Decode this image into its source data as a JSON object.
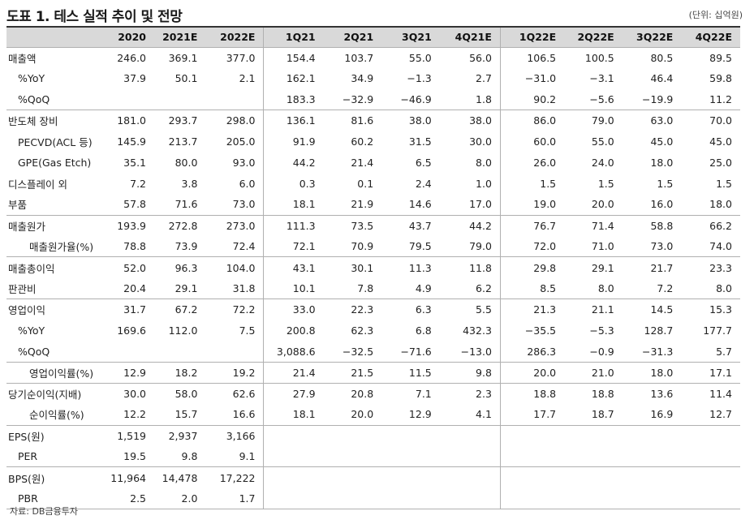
{
  "title": "도표 1. 테스 실적 추이 및 전망",
  "unit": "(단위: 십억원)",
  "footnote": "자료: DB금융투자",
  "columns": [
    "",
    "2020",
    "2021E",
    "2022E",
    "1Q21",
    "2Q21",
    "3Q21",
    "4Q21E",
    "1Q22E",
    "2Q22E",
    "3Q22E",
    "4Q22E"
  ],
  "rows": [
    {
      "label": "매출액",
      "indent": 0,
      "group_start": true,
      "values": [
        "246.0",
        "369.1",
        "377.0",
        "154.4",
        "103.7",
        "55.0",
        "56.0",
        "106.5",
        "100.5",
        "80.5",
        "89.5"
      ]
    },
    {
      "label": "%YoY",
      "indent": 1,
      "group_start": false,
      "values": [
        "37.9",
        "50.1",
        "2.1",
        "162.1",
        "34.9",
        "−1.3",
        "2.7",
        "−31.0",
        "−3.1",
        "46.4",
        "59.8"
      ]
    },
    {
      "label": "%QoQ",
      "indent": 1,
      "group_start": false,
      "values": [
        "",
        "",
        "",
        "183.3",
        "−32.9",
        "−46.9",
        "1.8",
        "90.2",
        "−5.6",
        "−19.9",
        "11.2"
      ]
    },
    {
      "label": "반도체 장비",
      "indent": 0,
      "group_start": true,
      "values": [
        "181.0",
        "293.7",
        "298.0",
        "136.1",
        "81.6",
        "38.0",
        "38.0",
        "86.0",
        "79.0",
        "63.0",
        "70.0"
      ]
    },
    {
      "label": "PECVD(ACL 등)",
      "indent": 1,
      "group_start": false,
      "values": [
        "145.9",
        "213.7",
        "205.0",
        "91.9",
        "60.2",
        "31.5",
        "30.0",
        "60.0",
        "55.0",
        "45.0",
        "45.0"
      ]
    },
    {
      "label": "GPE(Gas Etch)",
      "indent": 1,
      "group_start": false,
      "values": [
        "35.1",
        "80.0",
        "93.0",
        "44.2",
        "21.4",
        "6.5",
        "8.0",
        "26.0",
        "24.0",
        "18.0",
        "25.0"
      ]
    },
    {
      "label": "디스플레이 외",
      "indent": 0,
      "group_start": false,
      "values": [
        "7.2",
        "3.8",
        "6.0",
        "0.3",
        "0.1",
        "2.4",
        "1.0",
        "1.5",
        "1.5",
        "1.5",
        "1.5"
      ]
    },
    {
      "label": "부품",
      "indent": 0,
      "group_start": false,
      "values": [
        "57.8",
        "71.6",
        "73.0",
        "18.1",
        "21.9",
        "14.6",
        "17.0",
        "19.0",
        "20.0",
        "16.0",
        "18.0"
      ]
    },
    {
      "label": "매출원가",
      "indent": 0,
      "group_start": true,
      "values": [
        "193.9",
        "272.8",
        "273.0",
        "111.3",
        "73.5",
        "43.7",
        "44.2",
        "76.7",
        "71.4",
        "58.8",
        "66.2"
      ]
    },
    {
      "label": "매출원가율(%)",
      "indent": 2,
      "group_start": false,
      "values": [
        "78.8",
        "73.9",
        "72.4",
        "72.1",
        "70.9",
        "79.5",
        "79.0",
        "72.0",
        "71.0",
        "73.0",
        "74.0"
      ]
    },
    {
      "label": "매출총이익",
      "indent": 0,
      "group_start": true,
      "values": [
        "52.0",
        "96.3",
        "104.0",
        "43.1",
        "30.1",
        "11.3",
        "11.8",
        "29.8",
        "29.1",
        "21.7",
        "23.3"
      ]
    },
    {
      "label": "판관비",
      "indent": 0,
      "group_start": false,
      "values": [
        "20.4",
        "29.1",
        "31.8",
        "10.1",
        "7.8",
        "4.9",
        "6.2",
        "8.5",
        "8.0",
        "7.2",
        "8.0"
      ]
    },
    {
      "label": "영업이익",
      "indent": 0,
      "group_start": true,
      "values": [
        "31.7",
        "67.2",
        "72.2",
        "33.0",
        "22.3",
        "6.3",
        "5.5",
        "21.3",
        "21.1",
        "14.5",
        "15.3"
      ]
    },
    {
      "label": "%YoY",
      "indent": 1,
      "group_start": false,
      "values": [
        "169.6",
        "112.0",
        "7.5",
        "200.8",
        "62.3",
        "6.8",
        "432.3",
        "−35.5",
        "−5.3",
        "128.7",
        "177.7"
      ]
    },
    {
      "label": "%QoQ",
      "indent": 1,
      "group_start": false,
      "values": [
        "",
        "",
        "",
        "3,088.6",
        "−32.5",
        "−71.6",
        "−13.0",
        "286.3",
        "−0.9",
        "−31.3",
        "5.7"
      ]
    },
    {
      "label": "영업이익률(%)",
      "indent": 2,
      "group_start": true,
      "values": [
        "12.9",
        "18.2",
        "19.2",
        "21.4",
        "21.5",
        "11.5",
        "9.8",
        "20.0",
        "21.0",
        "18.0",
        "17.1"
      ]
    },
    {
      "label": "당기순이익(지배)",
      "indent": 0,
      "group_start": true,
      "values": [
        "30.0",
        "58.0",
        "62.6",
        "27.9",
        "20.8",
        "7.1",
        "2.3",
        "18.8",
        "18.8",
        "13.6",
        "11.4"
      ]
    },
    {
      "label": "순이익률(%)",
      "indent": 2,
      "group_start": false,
      "values": [
        "12.2",
        "15.7",
        "16.6",
        "18.1",
        "20.0",
        "12.9",
        "4.1",
        "17.7",
        "18.7",
        "16.9",
        "12.7"
      ]
    },
    {
      "label": "EPS(원)",
      "indent": 0,
      "group_start": true,
      "values": [
        "1,519",
        "2,937",
        "3,166",
        "",
        "",
        "",
        "",
        "",
        "",
        "",
        ""
      ]
    },
    {
      "label": "PER",
      "indent": 1,
      "group_start": false,
      "values": [
        "19.5",
        "9.8",
        "9.1",
        "",
        "",
        "",
        "",
        "",
        "",
        "",
        ""
      ]
    },
    {
      "label": "BPS(원)",
      "indent": 0,
      "group_start": true,
      "values": [
        "11,964",
        "14,478",
        "17,222",
        "",
        "",
        "",
        "",
        "",
        "",
        "",
        ""
      ]
    },
    {
      "label": "PBR",
      "indent": 1,
      "group_start": false,
      "values": [
        "2.5",
        "2.0",
        "1.7",
        "",
        "",
        "",
        "",
        "",
        "",
        "",
        ""
      ]
    }
  ]
}
